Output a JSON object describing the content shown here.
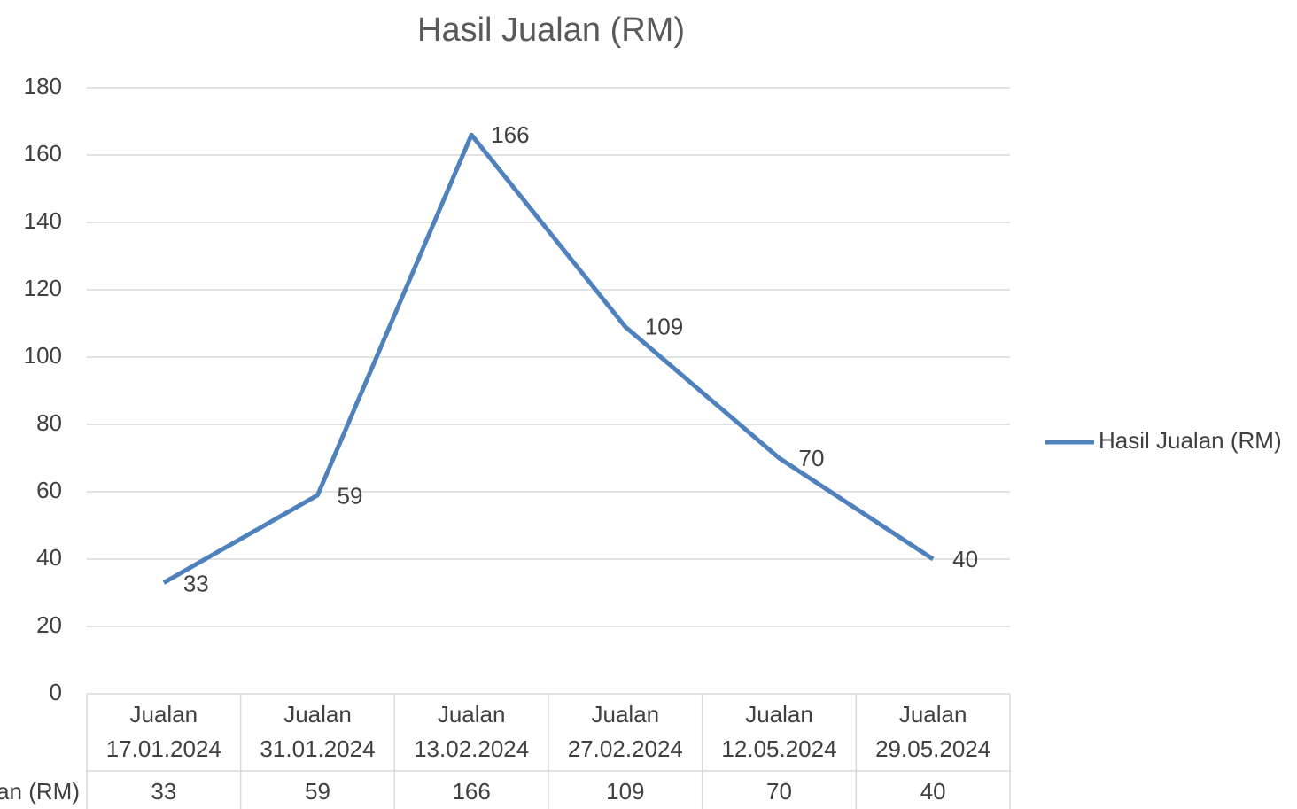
{
  "chart_data": {
    "type": "line",
    "title": "Hasil Jualan (RM)",
    "categories": [
      "Jualan 17.01.2024",
      "Jualan 31.01.2024",
      "Jualan 13.02.2024",
      "Jualan 27.02.2024",
      "Jualan 12.05.2024",
      "Jualan 29.05.2024"
    ],
    "series": [
      {
        "name": "Hasil Jualan (RM)",
        "color": "#4f81bd",
        "values": [
          33,
          59,
          166,
          109,
          70,
          40
        ]
      }
    ],
    "ylim": [
      0,
      180
    ],
    "yticks": [
      0,
      20,
      40,
      60,
      80,
      100,
      120,
      140,
      160,
      180
    ],
    "grid": true,
    "legend": "right",
    "data_table": true
  }
}
